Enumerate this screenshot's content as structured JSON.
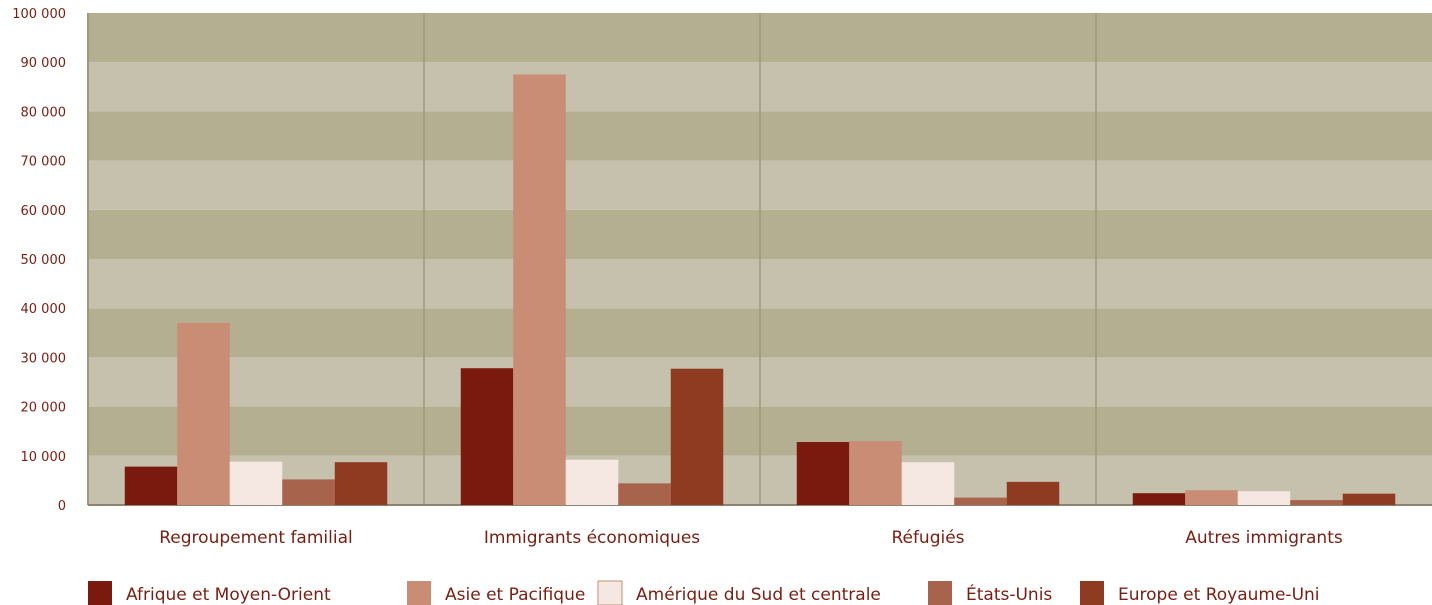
{
  "chart_data": {
    "type": "bar",
    "categories": [
      "Regroupement familial",
      "Immigrants économiques",
      "Réfugiés",
      "Autres immigrants"
    ],
    "series": [
      {
        "name": "Afrique et Moyen-Orient",
        "color": "#7a1a0e",
        "values": [
          7800,
          27800,
          12800,
          2400
        ]
      },
      {
        "name": "Asie et Pacifique",
        "color": "#c98c74",
        "values": [
          37000,
          87500,
          13000,
          3000
        ]
      },
      {
        "name": "Amérique du Sud et centrale",
        "color": "#f5e8e2",
        "values": [
          8800,
          9200,
          8700,
          2800
        ]
      },
      {
        "name": "États-Unis",
        "color": "#a8634c",
        "values": [
          5200,
          4400,
          1500,
          1000
        ]
      },
      {
        "name": "Europe et Royaume-Uni",
        "color": "#8e3b21",
        "values": [
          8700,
          27700,
          4700,
          2300
        ]
      }
    ],
    "ylim": [
      0,
      100000
    ],
    "yticks": [
      0,
      10000,
      20000,
      30000,
      40000,
      50000,
      60000,
      70000,
      80000,
      90000,
      100000
    ],
    "ytick_labels": [
      "0",
      "10 000",
      "20 000",
      "30 000",
      "40 000",
      "50 000",
      "60 000",
      "70 000",
      "80 000",
      "90 000",
      "100 000"
    ],
    "title": "",
    "xlabel": "",
    "ylabel": "",
    "legend_position": "bottom",
    "grid": true,
    "plot_colors": {
      "band_dark": "#b5af92",
      "band_light": "#c6c1ad",
      "divider": "#9e987c",
      "baseline": "#8a8470",
      "text": "#7a1e12"
    }
  }
}
